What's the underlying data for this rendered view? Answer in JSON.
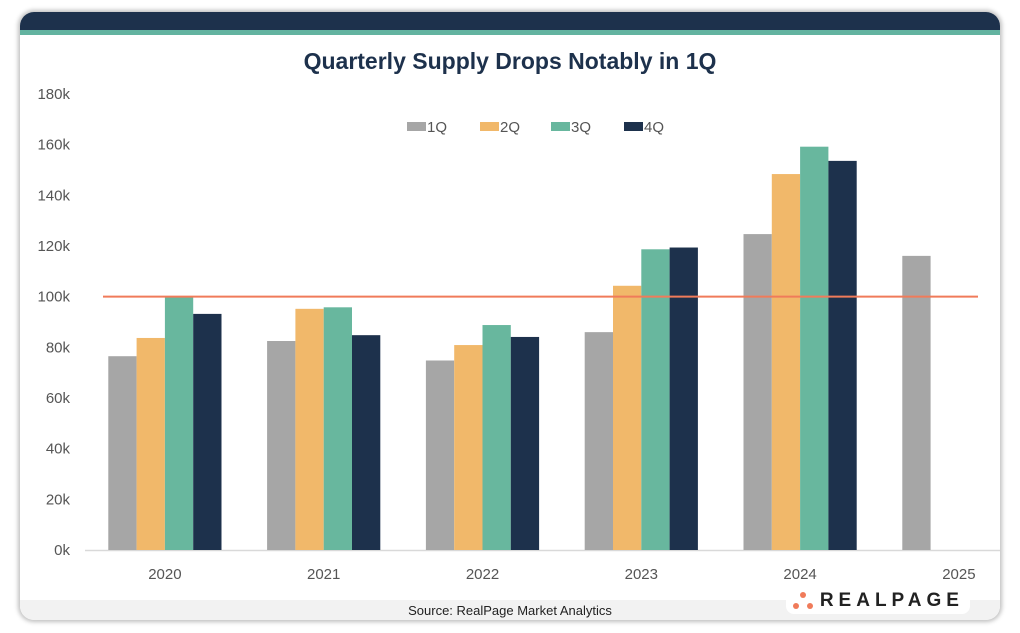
{
  "chart_data": {
    "type": "bar",
    "title": "Quarterly Supply Drops Notably in 1Q",
    "categories": [
      "2020",
      "2021",
      "2022",
      "2023",
      "2024",
      "2025"
    ],
    "series": [
      {
        "name": "1Q",
        "color": "#a6a6a6",
        "values": [
          76.5,
          82.5,
          74.8,
          86,
          124.7,
          116.1
        ]
      },
      {
        "name": "2Q",
        "color": "#f1b86a",
        "values": [
          83.7,
          95.2,
          80.9,
          104.3,
          148.4,
          null
        ]
      },
      {
        "name": "3Q",
        "color": "#68b79e",
        "values": [
          100,
          95.8,
          88.8,
          118.7,
          159.2,
          null
        ]
      },
      {
        "name": "4Q",
        "color": "#1d314c",
        "values": [
          93.2,
          84.8,
          84.1,
          119.4,
          153.6,
          null
        ]
      }
    ],
    "yticks": [
      "0k",
      "20k",
      "40k",
      "60k",
      "80k",
      "100k",
      "120k",
      "140k",
      "160k",
      "180k"
    ],
    "ylim": [
      0,
      180
    ],
    "reference_line": {
      "value": 100,
      "color": "#f07b5a"
    },
    "legend_position": "top-center",
    "grid": false
  },
  "source": "Source: RealPage Market Analytics",
  "logo": "REALPAGE"
}
